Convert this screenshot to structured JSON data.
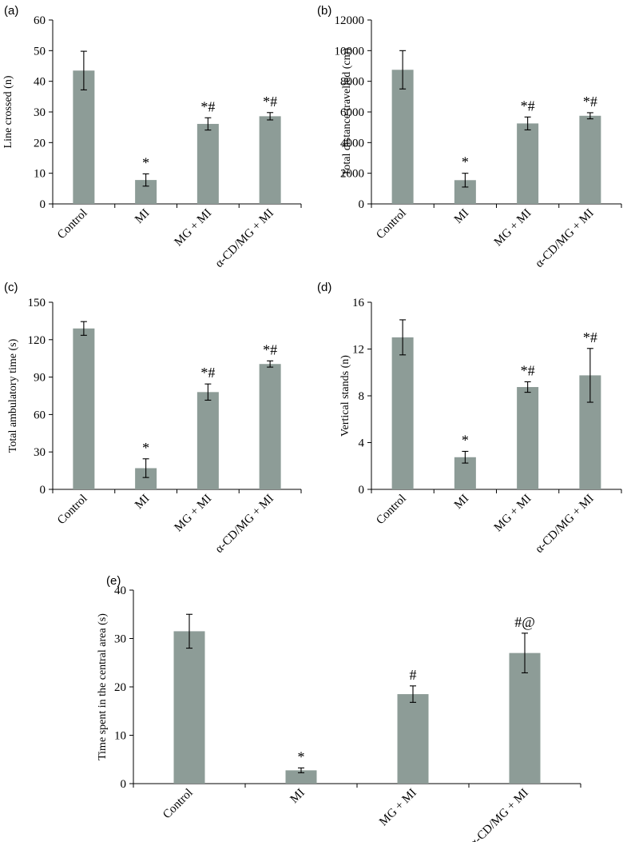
{
  "figure": {
    "bar_color": "#8d9c97",
    "categories": [
      "Control",
      "MI",
      "MG + MI",
      "α-CD/MG + MI"
    ]
  },
  "chart_data": [
    {
      "panel_letter": "(a)",
      "type": "bar",
      "ylabel": "Line crossed (n)",
      "ylim": [
        0,
        60
      ],
      "yticks": [
        0,
        10,
        20,
        30,
        40,
        50,
        60
      ],
      "categories": [
        "Control",
        "MI",
        "MG + MI",
        "α-CD/MG + MI"
      ],
      "values": [
        43.5,
        7.8,
        26.1,
        28.6
      ],
      "error": [
        6.3,
        2.0,
        2.0,
        1.2
      ],
      "annotations": [
        "",
        "*",
        "*#",
        "*#"
      ],
      "grid": false
    },
    {
      "panel_letter": "(b)",
      "type": "bar",
      "ylabel": "Total distance travelled (cm)",
      "ylim": [
        0,
        12000
      ],
      "yticks": [
        0,
        2000,
        4000,
        6000,
        8000,
        10000,
        12000
      ],
      "categories": [
        "Control",
        "MI",
        "MG + MI",
        "α-CD/MG + MI"
      ],
      "values": [
        8750,
        1550,
        5250,
        5750
      ],
      "error": [
        1250,
        450,
        420,
        200
      ],
      "annotations": [
        "",
        "*",
        "*#",
        "*#"
      ],
      "grid": false
    },
    {
      "panel_letter": "(c)",
      "type": "bar",
      "ylabel": "Total ambulatory time (s)",
      "ylim": [
        0,
        150
      ],
      "yticks": [
        0,
        30,
        60,
        90,
        120,
        150
      ],
      "categories": [
        "Control",
        "MI",
        "MG + MI",
        "α-CD/MG + MI"
      ],
      "values": [
        129,
        17,
        78,
        100.5
      ],
      "error": [
        5.5,
        7.5,
        6.5,
        2.5
      ],
      "annotations": [
        "",
        "*",
        "*#",
        "*#"
      ],
      "grid": false
    },
    {
      "panel_letter": "(d)",
      "type": "bar",
      "ylabel": "Vertical stands (n)",
      "ylim": [
        0,
        16
      ],
      "yticks": [
        0,
        4,
        8,
        12,
        16
      ],
      "categories": [
        "Control",
        "MI",
        "MG + MI",
        "α-CD/MG + MI"
      ],
      "values": [
        13,
        2.75,
        8.75,
        9.75
      ],
      "error": [
        1.5,
        0.5,
        0.45,
        2.3
      ],
      "annotations": [
        "",
        "*",
        "*#",
        "*#"
      ],
      "grid": false
    },
    {
      "panel_letter": "(e)",
      "type": "bar",
      "ylabel": "Time spent in the central area (s)",
      "ylim": [
        0,
        40
      ],
      "yticks": [
        0,
        10,
        20,
        30,
        40
      ],
      "categories": [
        "Control",
        "MI",
        "MG + MI",
        "α-CD/MG + MI"
      ],
      "values": [
        31.5,
        2.75,
        18.5,
        27
      ],
      "error": [
        3.5,
        0.5,
        1.7,
        4.1
      ],
      "annotations": [
        "",
        "*",
        "#",
        "#@"
      ],
      "grid": false
    }
  ]
}
